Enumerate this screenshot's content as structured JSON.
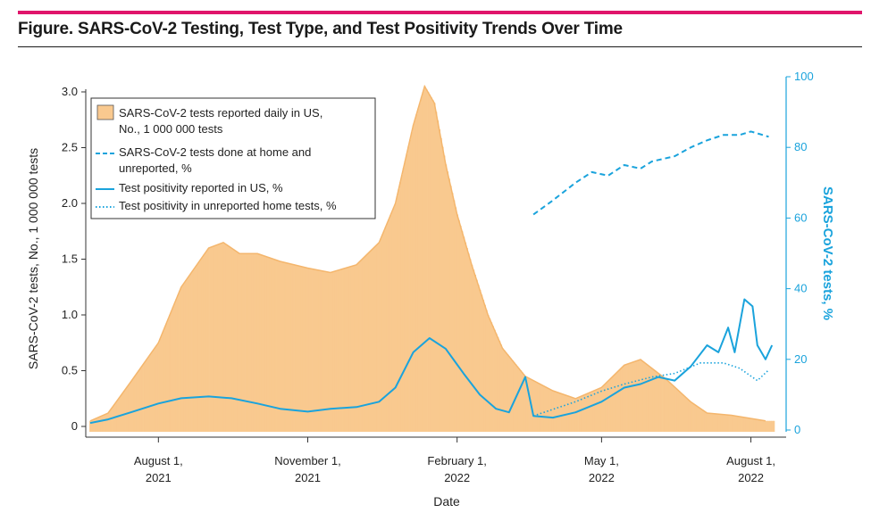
{
  "figure": {
    "title": "Figure. SARS-CoV-2 Testing, Test Type, and Test Positivity Trends Over Time"
  },
  "colors": {
    "bars": "#f9c98f",
    "bar_smooth": "#f4b66d",
    "line": "#1aa3dc",
    "accent_rule": "#e0156b"
  },
  "chart_data": {
    "type": "bar",
    "xlabel": "Date",
    "ylabel_left": "SARS-CoV-2 tests, No., 1 000 000 tests",
    "ylabel_right": "SARS-CoV-2 tests, %",
    "ylim_left": [
      0,
      3.0
    ],
    "ylim_right": [
      0,
      100
    ],
    "yticks_left": [
      "0",
      "0.5",
      "1.0",
      "1.5",
      "2.0",
      "2.5",
      "3.0"
    ],
    "yticks_right": [
      "0",
      "20",
      "40",
      "60",
      "80",
      "100"
    ],
    "x_ticks": [
      {
        "date": "2021-08-01",
        "line1": "August 1,",
        "line2": "2021"
      },
      {
        "date": "2021-11-01",
        "line1": "November 1,",
        "line2": "2021"
      },
      {
        "date": "2022-02-01",
        "line1": "February 1,",
        "line2": "2022"
      },
      {
        "date": "2022-05-01",
        "line1": "May 1,",
        "line2": "2022"
      },
      {
        "date": "2022-08-01",
        "line1": "August 1,",
        "line2": "2022"
      }
    ],
    "x_range": [
      "2021-06-20",
      "2022-08-15"
    ],
    "legend": {
      "placement": "top-left",
      "entries": [
        {
          "label1": "SARS-CoV-2 tests reported daily in US,",
          "label2": "No., 1 000 000 tests",
          "style": "bar"
        },
        {
          "label1": "SARS-CoV-2 tests done at home and",
          "label2": "unreported, %",
          "style": "dashed"
        },
        {
          "label1": "Test positivity reported in US, %",
          "label2": "",
          "style": "solid"
        },
        {
          "label1": "Test positivity in unreported home tests, %",
          "label2": "",
          "style": "dotted"
        }
      ]
    },
    "series": [
      {
        "name": "SARS-CoV-2 tests reported daily in US, No., 1 000 000 tests",
        "axis": "left",
        "style": "bar",
        "points": [
          [
            "2021-06-20",
            0.05
          ],
          [
            "2021-07-01",
            0.12
          ],
          [
            "2021-07-15",
            0.4
          ],
          [
            "2021-08-01",
            0.75
          ],
          [
            "2021-08-15",
            1.25
          ],
          [
            "2021-09-01",
            1.6
          ],
          [
            "2021-09-10",
            1.65
          ],
          [
            "2021-09-20",
            1.55
          ],
          [
            "2021-10-01",
            1.55
          ],
          [
            "2021-10-15",
            1.48
          ],
          [
            "2021-11-01",
            1.42
          ],
          [
            "2021-11-15",
            1.38
          ],
          [
            "2021-12-01",
            1.45
          ],
          [
            "2021-12-15",
            1.65
          ],
          [
            "2021-12-25",
            2.0
          ],
          [
            "2022-01-05",
            2.7
          ],
          [
            "2022-01-12",
            3.05
          ],
          [
            "2022-01-18",
            2.9
          ],
          [
            "2022-01-25",
            2.35
          ],
          [
            "2022-02-01",
            1.9
          ],
          [
            "2022-02-10",
            1.45
          ],
          [
            "2022-02-20",
            1.0
          ],
          [
            "2022-03-01",
            0.7
          ],
          [
            "2022-03-15",
            0.45
          ],
          [
            "2022-04-01",
            0.32
          ],
          [
            "2022-04-15",
            0.25
          ],
          [
            "2022-05-01",
            0.35
          ],
          [
            "2022-05-15",
            0.55
          ],
          [
            "2022-05-25",
            0.6
          ],
          [
            "2022-06-10",
            0.42
          ],
          [
            "2022-06-25",
            0.22
          ],
          [
            "2022-07-05",
            0.12
          ],
          [
            "2022-07-20",
            0.1
          ],
          [
            "2022-08-10",
            0.05
          ]
        ]
      },
      {
        "name": "SARS-CoV-2 tests done at home and unreported, %",
        "axis": "right",
        "style": "dashed",
        "points": [
          [
            "2022-03-20",
            61
          ],
          [
            "2022-04-01",
            65
          ],
          [
            "2022-04-15",
            70
          ],
          [
            "2022-04-25",
            73
          ],
          [
            "2022-05-05",
            72
          ],
          [
            "2022-05-15",
            75
          ],
          [
            "2022-05-25",
            74
          ],
          [
            "2022-06-01",
            76
          ],
          [
            "2022-06-15",
            77.5
          ],
          [
            "2022-06-25",
            80
          ],
          [
            "2022-07-05",
            82
          ],
          [
            "2022-07-15",
            83.5
          ],
          [
            "2022-07-25",
            83.5
          ],
          [
            "2022-08-01",
            84.5
          ],
          [
            "2022-08-12",
            83
          ]
        ]
      },
      {
        "name": "Test positivity reported in US, %",
        "axis": "right",
        "style": "solid",
        "points": [
          [
            "2021-06-20",
            2
          ],
          [
            "2021-07-01",
            3
          ],
          [
            "2021-07-15",
            5
          ],
          [
            "2021-08-01",
            7.5
          ],
          [
            "2021-08-15",
            9
          ],
          [
            "2021-09-01",
            9.5
          ],
          [
            "2021-09-15",
            9
          ],
          [
            "2021-10-01",
            7.5
          ],
          [
            "2021-10-15",
            6
          ],
          [
            "2021-11-01",
            5.2
          ],
          [
            "2021-11-15",
            6
          ],
          [
            "2021-12-01",
            6.5
          ],
          [
            "2021-12-15",
            8
          ],
          [
            "2021-12-25",
            12
          ],
          [
            "2022-01-05",
            22
          ],
          [
            "2022-01-15",
            26
          ],
          [
            "2022-01-25",
            23
          ],
          [
            "2022-02-05",
            16
          ],
          [
            "2022-02-15",
            10
          ],
          [
            "2022-02-25",
            6
          ],
          [
            "2022-03-05",
            5
          ],
          [
            "2022-03-15",
            15
          ],
          [
            "2022-03-20",
            4
          ],
          [
            "2022-04-01",
            3.5
          ],
          [
            "2022-04-15",
            5
          ],
          [
            "2022-05-01",
            8
          ],
          [
            "2022-05-15",
            12
          ],
          [
            "2022-05-25",
            13
          ],
          [
            "2022-06-05",
            15
          ],
          [
            "2022-06-15",
            14
          ],
          [
            "2022-06-25",
            18
          ],
          [
            "2022-07-05",
            24
          ],
          [
            "2022-07-12",
            22
          ],
          [
            "2022-07-18",
            29
          ],
          [
            "2022-07-22",
            22
          ],
          [
            "2022-07-28",
            37
          ],
          [
            "2022-08-02",
            35
          ],
          [
            "2022-08-05",
            24
          ],
          [
            "2022-08-10",
            20
          ],
          [
            "2022-08-14",
            24
          ]
        ]
      },
      {
        "name": "Test positivity in unreported home tests, %",
        "axis": "right",
        "style": "dotted",
        "points": [
          [
            "2022-03-20",
            4
          ],
          [
            "2022-04-15",
            8
          ],
          [
            "2022-05-01",
            11
          ],
          [
            "2022-05-15",
            13
          ],
          [
            "2022-06-01",
            15
          ],
          [
            "2022-06-15",
            16
          ],
          [
            "2022-07-01",
            19
          ],
          [
            "2022-07-15",
            19
          ],
          [
            "2022-07-25",
            17.5
          ],
          [
            "2022-08-05",
            14
          ],
          [
            "2022-08-12",
            17
          ]
        ]
      }
    ]
  }
}
